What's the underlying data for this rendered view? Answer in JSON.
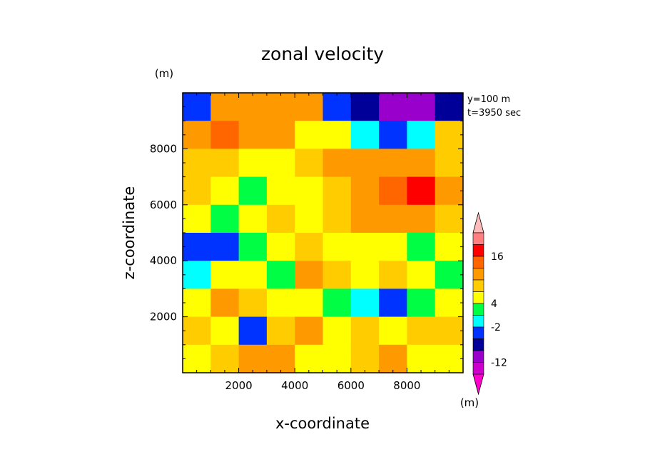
{
  "chart_data": {
    "type": "heatmap",
    "title": "zonal velocity",
    "xlabel": "x-coordinate",
    "ylabel": "z-coordinate",
    "y_unit": "(m)",
    "colorbar_unit": "(m)",
    "annotations": [
      "y=100 m",
      "t=3950 sec"
    ],
    "xlim": [
      0,
      10000
    ],
    "ylim": [
      0,
      10000
    ],
    "xticks": [
      2000,
      4000,
      6000,
      8000
    ],
    "yticks": [
      2000,
      4000,
      6000,
      8000
    ],
    "xtick_labels": [
      "2000",
      "4000",
      "6000",
      "8000"
    ],
    "ytick_labels": [
      "2000",
      "4000",
      "6000",
      "8000"
    ],
    "colorbar": {
      "colors": [
        "#ff00cc",
        "#cc00cc",
        "#9900cc",
        "#000099",
        "#0033ff",
        "#00ffff",
        "#00ff44",
        "#ffff00",
        "#ffcc00",
        "#ff9900",
        "#ff6600",
        "#ff0000",
        "#ff8080",
        "#ffbbbb"
      ],
      "labels": [
        "16",
        "4",
        "-2",
        "-12"
      ]
    },
    "x": [
      500,
      1500,
      2500,
      3500,
      4500,
      5500,
      6500,
      7500,
      8500,
      9500
    ],
    "y": [
      9500,
      8500,
      7500,
      6500,
      5500,
      4500,
      3500,
      2500,
      1500,
      500
    ],
    "values": [
      [
        -6,
        4,
        6,
        6,
        4,
        -6,
        -12,
        -16,
        -14,
        -10
      ],
      [
        4,
        10,
        6,
        4,
        1,
        1,
        -4,
        -6,
        -4,
        3
      ],
      [
        3,
        3,
        1,
        1,
        3,
        4,
        6,
        6,
        4,
        3
      ],
      [
        3,
        1,
        -2,
        1,
        1,
        3,
        6,
        10,
        12,
        6
      ],
      [
        1,
        -2,
        1,
        3,
        1,
        3,
        4,
        4,
        4,
        3
      ],
      [
        -6,
        -8,
        -2,
        1,
        3,
        1,
        1,
        1,
        -2,
        1
      ],
      [
        -4,
        1,
        1,
        -2,
        4,
        3,
        1,
        3,
        1,
        -2
      ],
      [
        1,
        4,
        3,
        1,
        1,
        -2,
        -4,
        -6,
        -2,
        1
      ],
      [
        3,
        1,
        -6,
        3,
        4,
        1,
        3,
        1,
        3,
        3
      ],
      [
        1,
        3,
        4,
        4,
        1,
        1,
        3,
        4,
        1,
        1
      ]
    ]
  }
}
